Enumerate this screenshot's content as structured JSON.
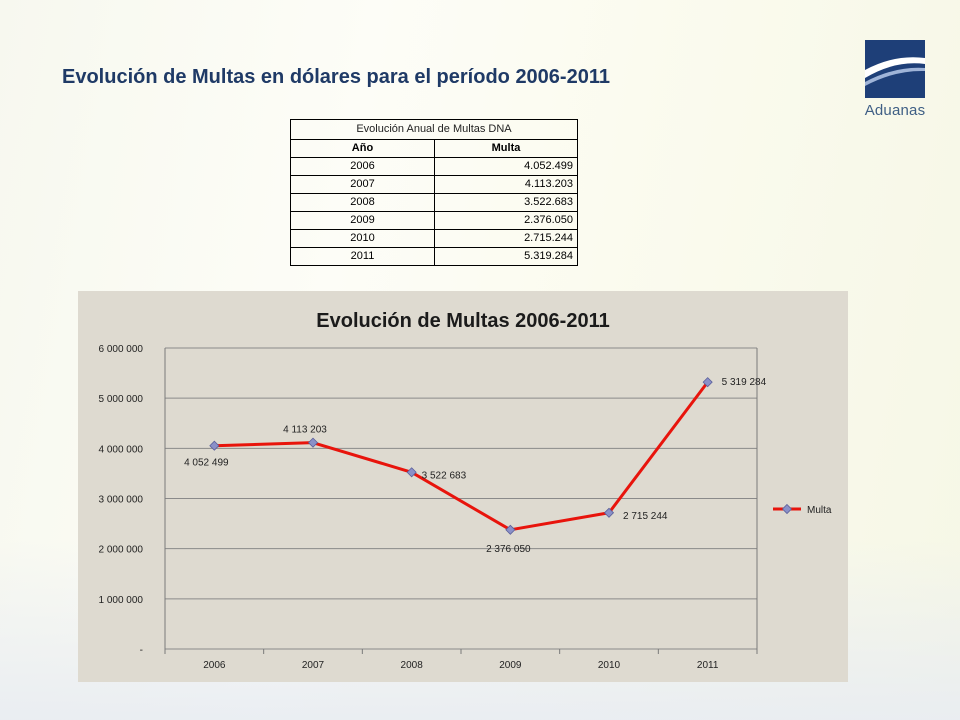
{
  "slide": {
    "title": "Evolución de Multas en dólares  para el período 2006-2011",
    "logo_text": "Aduanas"
  },
  "table": {
    "caption": "Evolución Anual de Multas DNA",
    "headers": [
      "Año",
      "Multa"
    ],
    "rows": [
      {
        "year": "2006",
        "fine": "4.052.499"
      },
      {
        "year": "2007",
        "fine": "4.113.203"
      },
      {
        "year": "2008",
        "fine": "3.522.683"
      },
      {
        "year": "2009",
        "fine": "2.376.050"
      },
      {
        "year": "2010",
        "fine": "2.715.244"
      },
      {
        "year": "2011",
        "fine": "5.319.284"
      }
    ]
  },
  "colors": {
    "title": "#1f3a66",
    "line": "#e8140c",
    "marker": "#8a90c8",
    "chart_bg": "#dedad0"
  },
  "chart_data": {
    "type": "line",
    "title": "Evolución de Multas  2006-2011",
    "categories": [
      "2006",
      "2007",
      "2008",
      "2009",
      "2010",
      "2011"
    ],
    "series": [
      {
        "name": "Multa",
        "values": [
          4052499,
          4113203,
          3522683,
          2376050,
          2715244,
          5319284
        ]
      }
    ],
    "data_labels": [
      "4 052 499",
      "4 113 203",
      "3 522 683",
      "2 376 050",
      "2 715 244",
      "5 319 284"
    ],
    "ylim": [
      0,
      6000000
    ],
    "y_ticks": [
      0,
      1000000,
      2000000,
      3000000,
      4000000,
      5000000,
      6000000
    ],
    "y_tick_labels": [
      "-",
      "1 000 000",
      "2 000 000",
      "3 000 000",
      "4 000 000",
      "5 000 000",
      "6 000 000"
    ],
    "xlabel": "",
    "ylabel": "",
    "grid": true,
    "legend": "right",
    "marker": "diamond"
  }
}
